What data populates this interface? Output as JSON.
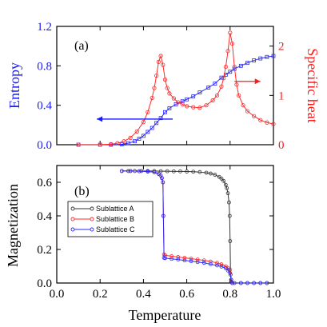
{
  "chart_data": [
    {
      "type": "line",
      "panel_label": "(a)",
      "x_range": [
        0.0,
        1.0
      ],
      "x_ticks": [
        0.0,
        0.2,
        0.4,
        0.6,
        0.8,
        1.0
      ],
      "y_left": {
        "label": "Entropy",
        "range": [
          0.0,
          1.2
        ],
        "ticks": [
          "0.0",
          "0.4",
          "0.8",
          "1.2"
        ],
        "color": "#1a1aff"
      },
      "y_right": {
        "label": "Specific heat",
        "range": [
          0,
          2.4
        ],
        "ticks": [
          "0",
          "1",
          "2"
        ],
        "color": "#ff1a1a"
      },
      "series": [
        {
          "axis": "left",
          "color": "#2a2aff",
          "marker": "open-square",
          "x": [
            0.1,
            0.2,
            0.25,
            0.3,
            0.33,
            0.36,
            0.38,
            0.4,
            0.42,
            0.44,
            0.46,
            0.48,
            0.5,
            0.52,
            0.55,
            0.58,
            0.6,
            0.63,
            0.66,
            0.7,
            0.73,
            0.76,
            0.78,
            0.8,
            0.82,
            0.85,
            0.88,
            0.91,
            0.94,
            0.97,
            1.0
          ],
          "y": [
            0.0,
            0.0,
            0.0,
            0.005,
            0.015,
            0.035,
            0.06,
            0.09,
            0.13,
            0.17,
            0.22,
            0.27,
            0.33,
            0.37,
            0.41,
            0.44,
            0.46,
            0.49,
            0.53,
            0.58,
            0.62,
            0.68,
            0.71,
            0.74,
            0.77,
            0.8,
            0.83,
            0.855,
            0.875,
            0.89,
            0.9
          ]
        },
        {
          "axis": "right",
          "color": "#ff2a2a",
          "marker": "open-circle",
          "x": [
            0.1,
            0.2,
            0.25,
            0.28,
            0.31,
            0.34,
            0.37,
            0.4,
            0.42,
            0.44,
            0.45,
            0.46,
            0.47,
            0.48,
            0.49,
            0.5,
            0.51,
            0.52,
            0.54,
            0.56,
            0.58,
            0.6,
            0.63,
            0.66,
            0.69,
            0.72,
            0.74,
            0.76,
            0.77,
            0.78,
            0.79,
            0.8,
            0.81,
            0.82,
            0.83,
            0.84,
            0.86,
            0.88,
            0.91,
            0.94,
            0.97,
            1.0
          ],
          "y": [
            0.0,
            0.0,
            0.01,
            0.03,
            0.07,
            0.14,
            0.27,
            0.46,
            0.66,
            0.95,
            1.15,
            1.4,
            1.68,
            1.8,
            1.62,
            1.32,
            1.15,
            1.04,
            0.94,
            0.86,
            0.82,
            0.78,
            0.76,
            0.75,
            0.8,
            0.9,
            1.0,
            1.18,
            1.35,
            1.58,
            1.9,
            2.27,
            2.05,
            1.58,
            1.22,
            1.0,
            0.8,
            0.68,
            0.58,
            0.5,
            0.45,
            0.42
          ]
        }
      ],
      "annotations": [
        {
          "type": "arrow",
          "color": "#1a1aff",
          "from": [
            0.535,
            0.26
          ],
          "to": [
            0.185,
            0.26
          ],
          "axis": "left"
        },
        {
          "type": "arrow",
          "color": "#ff1a1a",
          "from": [
            0.82,
            1.285
          ],
          "to": [
            0.94,
            1.285
          ],
          "axis": "right"
        }
      ]
    },
    {
      "type": "line",
      "panel_label": "(b)",
      "xlabel": "Temperature",
      "ylabel": "Magnetization",
      "x_range": [
        0.0,
        1.0
      ],
      "x_ticks": [
        "0.0",
        "0.2",
        "0.4",
        "0.6",
        "0.8",
        "1.0"
      ],
      "y_range": [
        0.0,
        0.7
      ],
      "y_ticks": [
        "0.0",
        "0.2",
        "0.4",
        "0.6"
      ],
      "legend": {
        "placement": "upper-left",
        "entries": [
          {
            "name": "Sublattice A",
            "color": "#333333",
            "marker": "open-circle"
          },
          {
            "name": "Sublattice B",
            "color": "#ff2a2a",
            "marker": "open-circle"
          },
          {
            "name": "Sublattice C",
            "color": "#2a2aff",
            "marker": "open-circle"
          }
        ]
      },
      "series": [
        {
          "name": "Sublattice A",
          "color": "#333333",
          "marker": "open-circle",
          "x": [
            0.3,
            0.33,
            0.36,
            0.39,
            0.42,
            0.45,
            0.48,
            0.51,
            0.54,
            0.57,
            0.6,
            0.63,
            0.66,
            0.69,
            0.71,
            0.73,
            0.75,
            0.76,
            0.77,
            0.78,
            0.785,
            0.79,
            0.795,
            0.798,
            0.8,
            0.802,
            0.805,
            0.81,
            0.82,
            0.85,
            0.88,
            0.91,
            0.94,
            0.97
          ],
          "y": [
            0.667,
            0.667,
            0.667,
            0.667,
            0.667,
            0.667,
            0.666,
            0.666,
            0.665,
            0.665,
            0.664,
            0.663,
            0.661,
            0.657,
            0.652,
            0.645,
            0.632,
            0.622,
            0.608,
            0.585,
            0.565,
            0.535,
            0.48,
            0.4,
            0.25,
            0.05,
            0.01,
            0.0,
            0.0,
            0.0,
            0.0,
            0.0,
            0.0,
            0.0
          ]
        },
        {
          "name": "Sublattice B",
          "color": "#ff2a2a",
          "marker": "open-circle",
          "x": [
            0.3,
            0.34,
            0.38,
            0.42,
            0.45,
            0.47,
            0.48,
            0.485,
            0.49,
            0.492,
            0.495,
            0.5,
            0.53,
            0.56,
            0.59,
            0.62,
            0.65,
            0.68,
            0.71,
            0.74,
            0.76,
            0.78,
            0.79,
            0.8,
            0.805,
            0.81
          ],
          "y": [
            0.667,
            0.667,
            0.666,
            0.664,
            0.66,
            0.65,
            0.64,
            0.625,
            0.6,
            0.4,
            0.17,
            0.165,
            0.16,
            0.155,
            0.15,
            0.145,
            0.14,
            0.135,
            0.128,
            0.12,
            0.112,
            0.1,
            0.09,
            0.08,
            0.02,
            0.0
          ]
        },
        {
          "name": "Sublattice C",
          "color": "#2a2aff",
          "marker": "open-circle",
          "x": [
            0.3,
            0.34,
            0.38,
            0.42,
            0.45,
            0.47,
            0.48,
            0.485,
            0.49,
            0.492,
            0.495,
            0.5,
            0.53,
            0.56,
            0.59,
            0.62,
            0.65,
            0.68,
            0.71,
            0.74,
            0.76,
            0.78,
            0.79,
            0.8,
            0.805,
            0.81,
            0.85,
            0.88,
            0.91,
            0.94,
            0.97
          ],
          "y": [
            0.667,
            0.667,
            0.666,
            0.664,
            0.66,
            0.65,
            0.64,
            0.625,
            0.6,
            0.4,
            0.15,
            0.148,
            0.144,
            0.14,
            0.135,
            0.13,
            0.125,
            0.12,
            0.112,
            0.105,
            0.098,
            0.088,
            0.075,
            0.06,
            0.02,
            0.0,
            0.0,
            0.0,
            0.0,
            0.0,
            0.0
          ]
        }
      ]
    }
  ]
}
